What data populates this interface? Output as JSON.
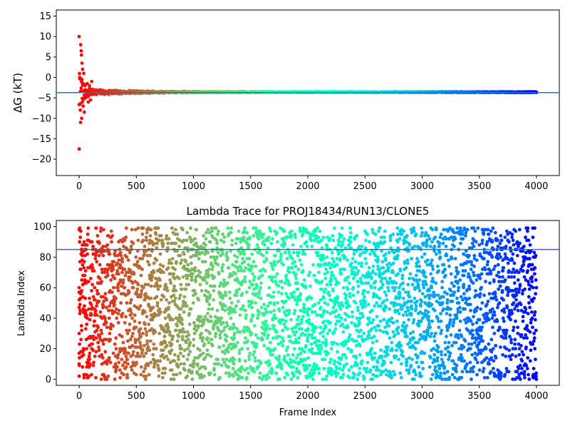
{
  "chart_data": [
    {
      "type": "scatter",
      "title": "",
      "xlabel": "",
      "ylabel": "ΔG (kT)",
      "xlim": [
        -200,
        4200
      ],
      "ylim": [
        -24,
        16.5
      ],
      "xticks": [
        "0",
        "500",
        "1000",
        "1500",
        "2000",
        "2500",
        "3000",
        "3500",
        "4000"
      ],
      "yticks": [
        "−20",
        "−15",
        "−10",
        "−5",
        "0",
        "5",
        "10",
        "15"
      ],
      "xtick_values": [
        0,
        500,
        1000,
        1500,
        2000,
        2500,
        3000,
        3500,
        4000
      ],
      "ytick_values": [
        -20,
        -15,
        -10,
        -5,
        0,
        5,
        10,
        15
      ],
      "colormap": "rainbow (reversed: red at frame 0, violet at frame 4000)",
      "hline": {
        "y": -3.7,
        "color": "#1f77b4"
      },
      "series": [
        {
          "x": [
            0,
            0,
            5,
            10,
            12,
            14,
            18,
            20,
            22,
            25,
            28,
            30,
            35,
            40,
            45,
            50,
            55,
            60,
            70,
            80,
            90,
            100,
            110,
            120,
            130,
            150,
            180,
            200,
            250,
            300,
            400,
            500,
            600,
            800,
            1000,
            1500,
            2000,
            2500,
            3000,
            3500,
            4000
          ],
          "y": [
            10.0,
            -17.5,
            0.0,
            -8.0,
            -11.0,
            8.0,
            6.5,
            5.5,
            -10.0,
            3.5,
            -6.0,
            2.0,
            -7.0,
            1.0,
            -8.5,
            -2.0,
            -5.0,
            -4.5,
            -1.5,
            -6.0,
            -2.0,
            -5.5,
            -1.0,
            -3.0,
            -4.0,
            -4.2,
            -3.5,
            -3.8,
            -3.4,
            -3.9,
            -3.6,
            -3.3,
            -3.7,
            -3.6,
            -3.7,
            -3.6,
            -3.7,
            -3.6,
            -3.7,
            -3.6,
            -3.6
          ]
        }
      ]
    },
    {
      "type": "scatter",
      "title": "Lambda Trace for PROJ18434/RUN13/CLONE5",
      "xlabel": "Frame Index",
      "ylabel": "Lambda Index",
      "xlim": [
        -200,
        4200
      ],
      "ylim": [
        -4,
        104
      ],
      "xticks": [
        "0",
        "500",
        "1000",
        "1500",
        "2000",
        "2500",
        "3000",
        "3500",
        "4000"
      ],
      "yticks": [
        "0",
        "20",
        "40",
        "60",
        "80",
        "100"
      ],
      "xtick_values": [
        0,
        500,
        1000,
        1500,
        2000,
        2500,
        3000,
        3500,
        4000
      ],
      "ytick_values": [
        0,
        20,
        40,
        60,
        80,
        100
      ],
      "colormap": "rainbow (reversed: red at frame 0, violet at frame 4000)",
      "hline": {
        "y": 85,
        "color": "#1f77b4"
      },
      "point_count": 4000,
      "value_range": [
        0,
        99
      ],
      "series": [
        {
          "x": [
            0,
            0,
            0,
            0,
            0,
            0,
            0,
            0,
            10,
            20,
            30,
            50,
            100,
            200,
            500,
            1000,
            2000,
            3000,
            4000
          ],
          "y": [
            98,
            60,
            57,
            52,
            47,
            30,
            17,
            2,
            93,
            85,
            75,
            65,
            90,
            40,
            10,
            55,
            25,
            70,
            60
          ]
        }
      ]
    }
  ]
}
